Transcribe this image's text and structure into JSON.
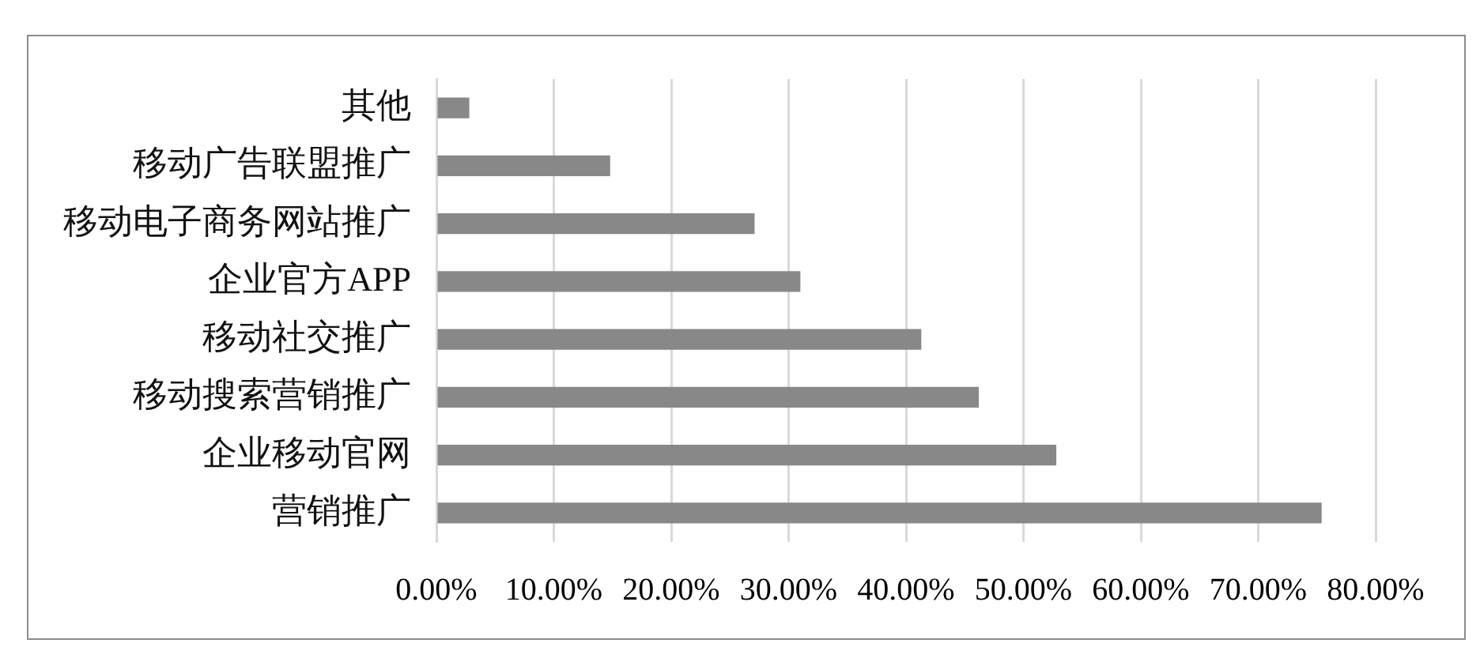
{
  "chart_data": {
    "type": "bar",
    "orientation": "horizontal",
    "categories": [
      "其他",
      "移动广告联盟推广",
      "移动电子商务网站推广",
      "企业官方APP",
      "移动社交推广",
      "移动搜索营销推广",
      "企业移动官网",
      "营销推广"
    ],
    "values": [
      2.8,
      14.8,
      27.1,
      31.0,
      41.3,
      46.2,
      52.8,
      75.4
    ],
    "color": "#888888",
    "xlim": [
      0,
      80
    ],
    "xticks": [
      {
        "value": 0,
        "label": "0.00%"
      },
      {
        "value": 10,
        "label": "10.00%"
      },
      {
        "value": 20,
        "label": "20.00%"
      },
      {
        "value": 30,
        "label": "30.00%"
      },
      {
        "value": 40,
        "label": "40.00%"
      },
      {
        "value": 50,
        "label": "50.00%"
      },
      {
        "value": 60,
        "label": "60.00%"
      },
      {
        "value": 70,
        "label": "70.00%"
      },
      {
        "value": 80,
        "label": "80.00%"
      }
    ],
    "grid": "x"
  }
}
